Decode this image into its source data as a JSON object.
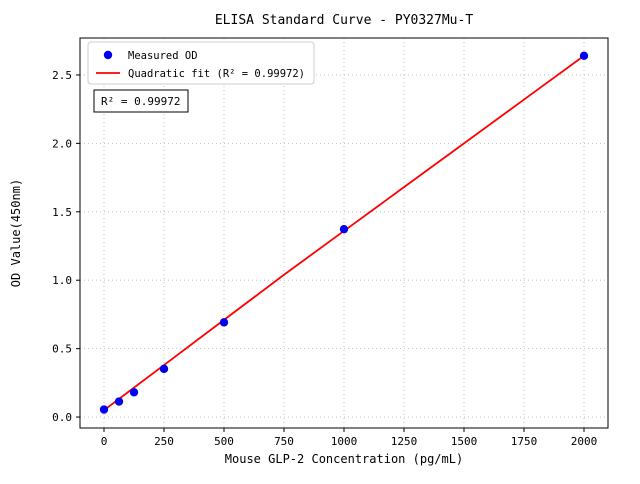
{
  "chart_data": {
    "type": "scatter",
    "title": "ELISA Standard Curve - PY0327Mu-T",
    "xlabel": "Mouse GLP-2 Concentration (pg/mL)",
    "ylabel": "OD Value(450nm)",
    "xlim": [
      -100,
      2100
    ],
    "ylim": [
      -0.08,
      2.77
    ],
    "x_ticks": [
      0,
      250,
      500,
      750,
      1000,
      1250,
      1500,
      1750,
      2000
    ],
    "y_ticks": [
      0.0,
      0.5,
      1.0,
      1.5,
      2.0,
      2.5
    ],
    "grid": true,
    "grid_style": "dotted",
    "legend_position": "upper left",
    "annotation": "R² = 0.99972",
    "series": [
      {
        "name": "Measured OD",
        "kind": "scatter",
        "color": "#0000ee",
        "x": [
          0,
          62.5,
          125,
          250,
          500,
          1000,
          2000
        ],
        "y": [
          0.055,
          0.113,
          0.181,
          0.352,
          0.692,
          1.373,
          2.64
        ]
      },
      {
        "name": "Quadratic fit (R² = 0.99972)",
        "kind": "line",
        "color": "#ff0000",
        "x": [
          0,
          250,
          500,
          750,
          1000,
          1250,
          1500,
          1750,
          2000
        ],
        "y": [
          0.05,
          0.38,
          0.71,
          1.04,
          1.36,
          1.68,
          2.0,
          2.32,
          2.64
        ]
      }
    ],
    "colors": {
      "grid": "#b5b5b5",
      "axis": "#000000",
      "background": "#ffffff"
    }
  }
}
